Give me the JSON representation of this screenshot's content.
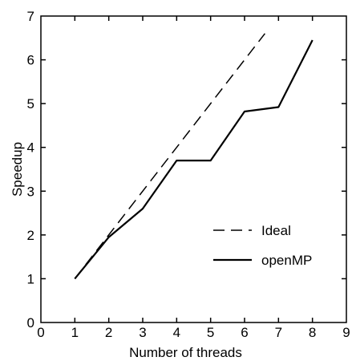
{
  "chart_data": {
    "type": "line",
    "title": "",
    "xlabel": "Number of threads",
    "ylabel": "Speedup",
    "xlim": [
      0,
      9
    ],
    "ylim": [
      0,
      7
    ],
    "xticks": [
      "0",
      "1",
      "2",
      "3",
      "4",
      "5",
      "6",
      "7",
      "8",
      "9"
    ],
    "yticks": [
      "0",
      "1",
      "2",
      "3",
      "4",
      "5",
      "6",
      "7"
    ],
    "grid": false,
    "legend_position": "right",
    "series": [
      {
        "name": "Ideal",
        "style": "dashed",
        "color": "#000000",
        "x": [
          1,
          6.6
        ],
        "y": [
          1,
          6.6
        ]
      },
      {
        "name": "openMP",
        "style": "solid",
        "color": "#000000",
        "x": [
          1,
          2,
          3,
          4,
          5,
          6,
          7,
          8
        ],
        "y": [
          1.0,
          1.95,
          2.6,
          3.7,
          3.7,
          4.82,
          4.92,
          6.45
        ]
      }
    ]
  }
}
